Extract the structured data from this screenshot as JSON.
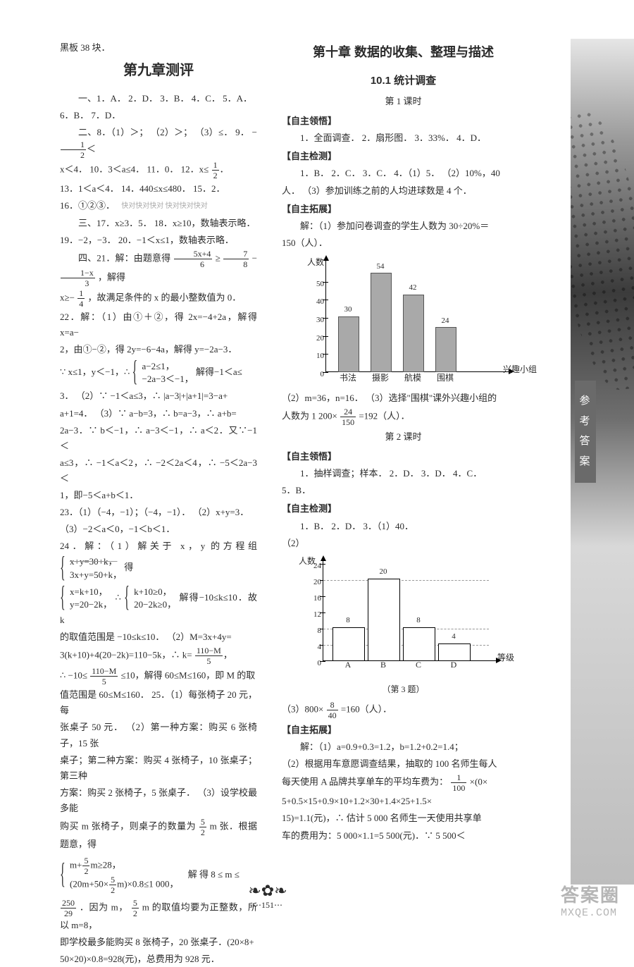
{
  "page_number": "151",
  "watermark_big": "答案圈",
  "watermark_small": "MXQE.COM",
  "sidebar_label": [
    "参",
    "考",
    "答",
    "案"
  ],
  "left": {
    "top_line": "黑板 38 块．",
    "chapter_title": "第九章测评",
    "sec_one": "一、1．A．  2．D．  3．B．  4．C．  5．A．",
    "line6": "6．B．  7．D．",
    "sec_two_a": "二、8．（1）＞；  （2）＞；  （3）≤．  9．",
    "nine_lhs_num": "1",
    "nine_lhs_den": "2",
    "nine_rest": "x＜4．  10．3＜a≤4．  11．0．  12．x≤",
    "twelve_num": "1",
    "twelve_den": "2",
    "line13": "13．1＜a＜4．  14．440≤x≤480．  15．2．",
    "line16": "16．①②③．",
    "faint_note": "快对快对快对\n快对快对快对",
    "sec_three_a": "三、17．x≥3．5．  18．x≥10，数轴表示略．",
    "line19": "19．−2，−3．  20．−1＜x≤1，数轴表示略．",
    "sec_four": "四、21．解：由题意得",
    "q21_frac1_num": "5x+4",
    "q21_frac1_den": "6",
    "q21_mid": "≥",
    "q21_frac2_num": "7",
    "q21_frac2_den": "8",
    "q21_minus": "−",
    "q21_frac3_num": "1−x",
    "q21_frac3_den": "3",
    "q21_tail": "，解得",
    "q21_line2a": "x≥−",
    "q21_f_num": "1",
    "q21_f_den": "4",
    "q21_line2b": "，故满足条件的 x 的最小整数值为 0．",
    "q22a": "22．解：（1）由①＋②，得 2x=−4+2a，解得 x=a−",
    "q22b": "2，由①−②，得 2y=−6−4a，解得 y=−2a−3．",
    "q22c_pre": "∵ x≤1，y＜−1，∴ ",
    "q22c_b1": "a−2≤1，",
    "q22c_b2": "−2a−3＜−1，",
    "q22c_post": "解得−1＜a≤",
    "q22d": "3．  （2）∵ −1＜a≤3，∴ |a−3|+|a+1|=3−a+",
    "q22e": "a+1=4．  （3）∵ a−b=3，∴ b=a−3，∴ a+b=",
    "q22f": "2a−3．∵ b＜−1，∴ a−3＜−1，∴ a＜2．又∵−1＜",
    "q22g": "a≤3，∴ −1＜a＜2，∴ −2＜2a＜4，∴ −5＜2a−3＜",
    "q22h": "1，即−5＜a+b＜1．",
    "q23a": "23．（1）（−4，−1）；（−4，−1）．  （2）x+y=3．",
    "q23b": "（3）−2＜a＜0，−1＜b＜1．",
    "q24a": "24．解：（1）解关于 x，y 的方程组",
    "q24_sys1a": "x+y=30+k，",
    "q24_sys1b": "3x+y=50+k，",
    "q24a_tail": "得",
    "q24_sys2a": "x=k+10，",
    "q24_sys2b": "y=20−2k，",
    "q24_mid": "∴ ",
    "q24_sys3a": "k+10≥0，",
    "q24_sys3b": "20−2k≥0，",
    "q24b": "解得−10≤k≤10．故 k",
    "q24c": "的取值范围是 −10≤k≤10．  （2）M=3x+4y=",
    "q24d_a": "3(k+10)+4(20−2k)=110−5k，∴ k=",
    "q24d_num": "110−M",
    "q24d_den": "5",
    "q24e_a": "∴ −10≤",
    "q24e_num": "110−M",
    "q24e_den": "5",
    "q24e_b": "≤10，解得 60≤M≤160，即 M 的取",
    "q24f": "值范围是 60≤M≤160．  25．（1）每张椅子 20 元，每",
    "q24g": "张桌子 50 元．  （2）第一种方案：购买 6 张椅子，15 张",
    "q24h": "桌子；第二种方案：购买 4 张椅子，10 张桌子；第三种",
    "q24i": "方案：购买 2 张椅子，5 张桌子．  （3）设学校最多能",
    "q24j_a": "购买 m 张椅子，则桌子的数量为",
    "q24j_num": "5",
    "q24j_den": "2",
    "q24j_b": "m 张．根据题意，得",
    "q24_sysM1": "m+ (5/2) m≥28，",
    "q24_sysM2": "(20m+50× (5/2) m)×0.8≤1 000，",
    "q24k": "解 得 8 ≤ m ≤",
    "q24l_num": "250",
    "q24l_den": "29",
    "q24l_a": "．因为 m，",
    "q24l_b": "m 的取值均要为正整数，所以 m=8，",
    "q24m": "即学校最多能购买 8 张椅子，20 张桌子．(20×8+",
    "q24n": "50×20)×0.8=928(元)，总费用为 928 元．"
  },
  "right": {
    "chapter_title": "第十章  数据的收集、整理与描述",
    "section_title": "10.1  统计调查",
    "lesson1": "第 1 课时",
    "zz1": "【自主领悟】",
    "zz1_body": "1．全面调查．  2．扇形图．  3．33%．  4．D．",
    "zj1": "【自主检测】",
    "zj1_a": "1．B．  2．C．  3．C．  4．（1）5．  （2）10%，40",
    "zj1_b": "人．  （3）参加训练之前的人均进球数是 4 个．",
    "tz1": "【自主拓展】",
    "tz1_a": "解：（1）参加问卷调查的学生人数为 30÷20%＝",
    "tz1_b": "150（人）．",
    "chart1": {
      "y_label": "人数",
      "x_label": "兴趣小组",
      "y_max": 60,
      "ticks": [
        0,
        10,
        20,
        30,
        40,
        50
      ],
      "categories": [
        "书法",
        "摄影",
        "航模",
        "围棋"
      ],
      "values": [
        30,
        54,
        42,
        24
      ],
      "bar_color": "#a9a9a9",
      "border_color": "#555555"
    },
    "tz1_c_a": "（2）m=36，n=16．  （3）选择\"围棋\"课外兴趣小组的",
    "tz1_c_b": "人数为 1 200×",
    "tz1_c_num": "24",
    "tz1_c_den": "150",
    "tz1_c_c": "=192（人）．",
    "lesson2": "第 2 课时",
    "zz2": "【自主领悟】",
    "zz2_body_a": "1．抽样调查；样本．  2．D．  3．D．  4．C．",
    "zz2_body_b": "5．B．",
    "zj2": "【自主检测】",
    "zj2_a": "1．B．  2．D．  3．（1）40．",
    "zj2_b": "（2）",
    "chart2": {
      "y_label": "人数",
      "x_label": "等级",
      "y_max": 24,
      "ticks": [
        0,
        4,
        8,
        12,
        16,
        20,
        24
      ],
      "categories": [
        "A",
        "B",
        "C",
        "D"
      ],
      "values": [
        8,
        20,
        8,
        4
      ],
      "bar_color": "#ffffff",
      "border_color": "#000000",
      "grid_color": "#999999"
    },
    "chart2_caption": "（第 3 题）",
    "zj2_c_a": "（3）800×",
    "zj2_c_num": "8",
    "zj2_c_den": "40",
    "zj2_c_b": "=160（人）．",
    "tz2": "【自主拓展】",
    "tz2_a": "解：（1）a=0.9+0.3=1.2，b=1.2+0.2=1.4；",
    "tz2_b": "（2）根据用车意愿调查结果，抽取的 100 名师生每人",
    "tz2_c_a": "每天使用 A 品牌共享单车的平均车费为：",
    "tz2_c_num": "1",
    "tz2_c_den": "100",
    "tz2_c_b": "×(0×",
    "tz2_d": "5+0.5×15+0.9×10+1.2×30+1.4×25+1.5×",
    "tz2_e": "15)=1.1(元)，∴ 估计 5 000 名师生一天使用共享单",
    "tz2_f": "车的费用为：5 000×1.1=5 500(元)．∵ 5 500＜"
  }
}
